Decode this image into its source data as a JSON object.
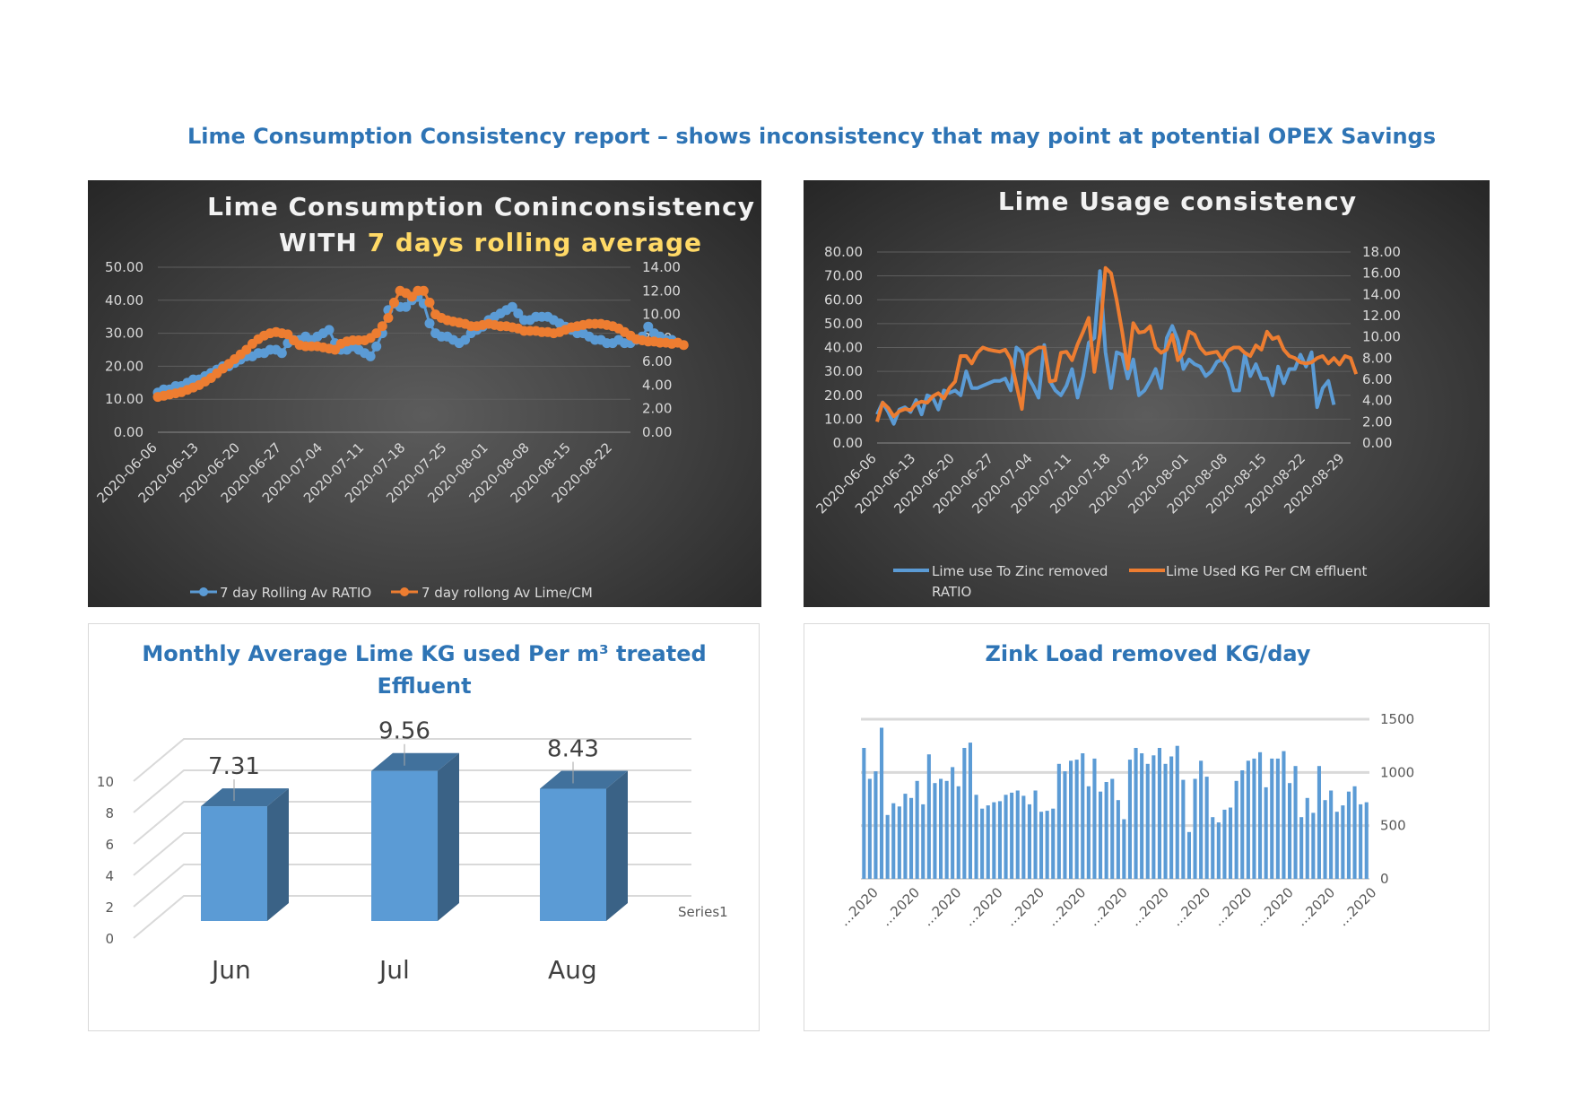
{
  "report_title": "Lime Consumption Consistency report – shows inconsistency that may point at potential OPEX Savings",
  "colors": {
    "blue": "#5b9bd5",
    "orange": "#ed7d31",
    "title_blue": "#2e74b5",
    "highlight_yellow": "#ffd966"
  },
  "chart_data": [
    {
      "type": "line",
      "title_line1": "Lime Consumption Coninconsistency",
      "title_line2_prefix": "WITH ",
      "title_line2_highlight": "7 days rolling average",
      "x_tick_labels": [
        "2020-06-06",
        "2020-06-13",
        "2020-06-20",
        "2020-06-27",
        "2020-07-04",
        "2020-07-11",
        "2020-07-18",
        "2020-07-25",
        "2020-08-01",
        "2020-08-08",
        "2020-08-15",
        "2020-08-22"
      ],
      "x_range": [
        "2020-06-06",
        "2020-08-25"
      ],
      "y_left": {
        "min": 0,
        "max": 50,
        "ticks": [
          "0.00",
          "10.00",
          "20.00",
          "30.00",
          "40.00",
          "50.00"
        ]
      },
      "y_right": {
        "min": 0,
        "max": 14,
        "ticks": [
          "0.00",
          "2.00",
          "4.00",
          "6.00",
          "8.00",
          "10.00",
          "12.00",
          "14.00"
        ]
      },
      "grid": true,
      "legend_position": "bottom",
      "series": [
        {
          "name": "7 day Rolling Av RATIO",
          "axis": "left",
          "color": "#5b9bd5",
          "marker": "circle",
          "values": [
            12,
            13,
            13,
            14,
            14,
            15,
            16,
            16,
            17,
            18,
            19,
            20,
            20,
            21,
            22,
            23,
            23,
            24,
            24,
            25,
            25,
            24,
            27,
            28,
            28,
            29,
            28,
            29,
            30,
            31,
            27,
            25,
            25,
            26,
            25,
            24,
            23,
            26,
            30,
            37,
            39,
            38,
            38,
            40,
            41,
            39,
            33,
            30,
            29,
            29,
            28,
            27,
            28,
            30,
            31,
            32,
            34,
            35,
            36,
            37,
            38,
            36,
            34,
            34,
            35,
            35,
            35,
            34,
            33,
            32,
            31,
            30,
            30,
            29,
            28,
            28,
            27,
            27,
            28,
            27,
            27,
            28,
            29,
            32,
            30,
            29,
            28,
            28
          ]
        },
        {
          "name": "7 day rollong Av Lime/CM",
          "axis": "right",
          "color": "#ed7d31",
          "marker": "circle",
          "values": [
            3.0,
            3.1,
            3.2,
            3.3,
            3.4,
            3.6,
            3.8,
            4.0,
            4.3,
            4.6,
            5.0,
            5.4,
            5.8,
            6.2,
            6.6,
            7.0,
            7.5,
            7.9,
            8.2,
            8.4,
            8.5,
            8.4,
            8.3,
            7.8,
            7.4,
            7.3,
            7.3,
            7.3,
            7.2,
            7.1,
            7.0,
            7.5,
            7.7,
            7.8,
            7.8,
            7.8,
            8.0,
            8.4,
            9.0,
            9.7,
            11.0,
            12.0,
            11.8,
            11.5,
            12.0,
            12.0,
            11.0,
            10.0,
            9.7,
            9.5,
            9.4,
            9.3,
            9.2,
            9.0,
            9.0,
            9.1,
            9.2,
            9.1,
            9.0,
            9.0,
            8.9,
            8.8,
            8.6,
            8.6,
            8.6,
            8.5,
            8.5,
            8.4,
            8.5,
            8.7,
            8.9,
            9.0,
            9.1,
            9.2,
            9.2,
            9.2,
            9.1,
            9.0,
            8.8,
            8.5,
            8.2,
            7.9,
            7.8,
            7.7,
            7.7,
            7.6,
            7.6,
            7.5,
            7.6,
            7.4
          ]
        }
      ]
    },
    {
      "type": "line",
      "title": "Lime Usage consistency",
      "x_tick_labels": [
        "2020-06-06",
        "2020-06-13",
        "2020-06-20",
        "2020-06-27",
        "2020-07-04",
        "2020-07-11",
        "2020-07-18",
        "2020-07-25",
        "2020-08-01",
        "2020-08-08",
        "2020-08-15",
        "2020-08-22",
        "2020-08-29"
      ],
      "x_range": [
        "2020-06-06",
        "2020-08-30"
      ],
      "y_left": {
        "min": 0,
        "max": 80,
        "ticks": [
          "0.00",
          "10.00",
          "20.00",
          "30.00",
          "40.00",
          "50.00",
          "60.00",
          "70.00",
          "80.00"
        ]
      },
      "y_right": {
        "min": 0,
        "max": 18,
        "ticks": [
          "0.00",
          "2.00",
          "4.00",
          "6.00",
          "8.00",
          "10.00",
          "12.00",
          "14.00",
          "16.00",
          "18.00"
        ]
      },
      "grid": true,
      "legend_position": "bottom",
      "series": [
        {
          "name": "Lime use To Zinc removed",
          "name_line2": "RATIO",
          "axis": "left",
          "color": "#5b9bd5",
          "values": [
            12,
            17,
            13,
            8,
            14,
            15,
            13,
            18,
            12,
            20,
            19,
            14,
            22,
            21,
            22,
            20,
            30,
            23,
            23,
            24,
            25,
            26,
            26,
            27,
            22,
            40,
            38,
            28,
            24,
            19,
            41,
            26,
            22,
            20,
            24,
            31,
            19,
            28,
            42,
            44,
            72,
            38,
            23,
            38,
            37,
            27,
            35,
            20,
            22,
            26,
            31,
            23,
            44,
            49,
            43,
            31,
            35,
            33,
            32,
            28,
            30,
            34,
            35,
            31,
            22,
            22,
            37,
            28,
            33,
            27,
            27,
            20,
            32,
            25,
            31,
            31,
            37,
            32,
            38,
            15,
            23,
            26,
            16
          ]
        },
        {
          "name": "Lime Used KG Per CM effluent",
          "axis": "right",
          "color": "#ed7d31",
          "values": [
            2.0,
            3.8,
            3.3,
            2.5,
            3.0,
            3.2,
            3.1,
            3.7,
            3.9,
            3.8,
            4.4,
            4.7,
            4.2,
            5.2,
            5.8,
            8.2,
            8.2,
            7.5,
            8.5,
            9.0,
            8.8,
            8.7,
            8.6,
            8.8,
            7.9,
            5.5,
            3.2,
            8.3,
            8.7,
            9.0,
            9.0,
            5.8,
            5.9,
            8.5,
            8.6,
            7.8,
            9.3,
            10.5,
            11.8,
            6.7,
            10.3,
            16.5,
            16.0,
            13.5,
            10.5,
            7.0,
            11.3,
            10.4,
            10.5,
            11.0,
            9.0,
            8.5,
            8.8,
            10.2,
            7.8,
            8.5,
            10.5,
            10.2,
            9.0,
            8.4,
            8.5,
            8.6,
            7.8,
            8.7,
            9.0,
            9.0,
            8.5,
            8.2,
            9.2,
            8.8,
            10.5,
            9.8,
            10.0,
            8.8,
            8.2,
            8.0,
            7.6,
            7.5,
            7.6,
            8.0,
            8.2,
            7.5,
            8.0,
            7.4,
            8.2,
            8.0,
            6.5
          ]
        }
      ]
    },
    {
      "type": "bar",
      "subtype": "3d-column",
      "title": "Monthly Average Lime KG used Per m³ treated Effluent",
      "categories": [
        "Jun",
        "Jul",
        "Aug"
      ],
      "series": [
        {
          "name": "Series1",
          "values": [
            7.31,
            9.56,
            8.43
          ],
          "labels": [
            "7.31",
            "9.56",
            "8.43"
          ]
        }
      ],
      "ylim": [
        0,
        10
      ],
      "y_ticks": [
        "0",
        "2",
        "4",
        "6",
        "8",
        "10"
      ],
      "grid": true,
      "legend_position": "right"
    },
    {
      "type": "bar",
      "title": "Zink Load removed KG/day",
      "x_tick_labels": [
        "…2020",
        "…2020",
        "…2020",
        "…2020",
        "…2020",
        "…2020",
        "…2020",
        "…2020",
        "…2020",
        "…2020",
        "…2020",
        "…2020",
        "…2020"
      ],
      "values": [
        1230,
        940,
        1010,
        1420,
        600,
        710,
        680,
        800,
        760,
        920,
        700,
        1170,
        900,
        940,
        920,
        1050,
        870,
        1230,
        1280,
        790,
        660,
        690,
        720,
        730,
        790,
        810,
        830,
        780,
        700,
        830,
        630,
        640,
        660,
        1080,
        1010,
        1110,
        1120,
        1180,
        870,
        1130,
        820,
        910,
        940,
        740,
        560,
        1120,
        1230,
        1180,
        1080,
        1160,
        1230,
        1080,
        1150,
        1250,
        930,
        440,
        940,
        1110,
        960,
        580,
        530,
        650,
        670,
        920,
        1020,
        1110,
        1130,
        1190,
        860,
        1130,
        1130,
        1200,
        900,
        1060,
        580,
        760,
        620,
        1060,
        740,
        830,
        630,
        690,
        820,
        870,
        700,
        720
      ],
      "y_axis_side": "right",
      "ylim": [
        0,
        1500
      ],
      "y_ticks": [
        "0",
        "500",
        "1000",
        "1500"
      ],
      "grid": true
    }
  ]
}
